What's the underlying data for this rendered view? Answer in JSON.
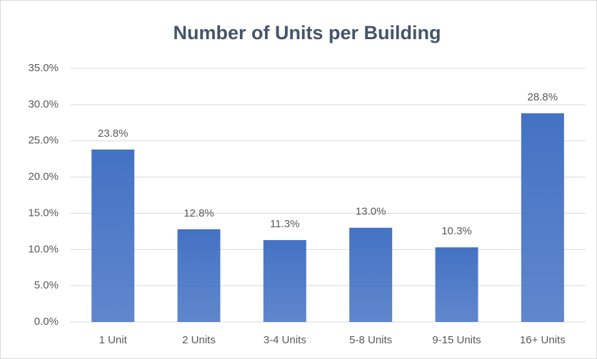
{
  "chart_data": {
    "type": "bar",
    "title": "Number of Units per Building",
    "categories": [
      "1 Unit",
      "2 Units",
      "3-4 Units",
      "5-8 Units",
      "9-15 Units",
      "16+ Units"
    ],
    "values": [
      23.8,
      12.8,
      11.3,
      13.0,
      10.3,
      28.8
    ],
    "value_labels": [
      "23.8%",
      "12.8%",
      "11.3%",
      "13.0%",
      "10.3%",
      "28.8%"
    ],
    "color": "#4472c4",
    "ylim": [
      0,
      35
    ],
    "yticks": [
      {
        "value": 0,
        "label": "0.0%"
      },
      {
        "value": 5,
        "label": "5.0%"
      },
      {
        "value": 10,
        "label": "10.0%"
      },
      {
        "value": 15,
        "label": "15.0%"
      },
      {
        "value": 20,
        "label": "20.0%"
      },
      {
        "value": 25,
        "label": "25.0%"
      },
      {
        "value": 30,
        "label": "30.0%"
      },
      {
        "value": 35,
        "label": "35.0%"
      }
    ],
    "grid": true
  }
}
